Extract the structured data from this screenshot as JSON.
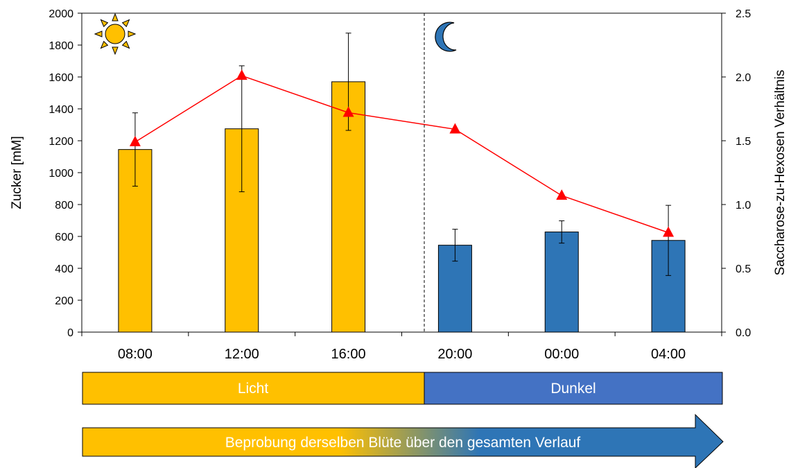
{
  "chart_data": {
    "type": "bar",
    "categories": [
      "08:00",
      "12:00",
      "16:00",
      "20:00",
      "00:00",
      "04:00"
    ],
    "series": [
      {
        "type": "bar",
        "axis": "left",
        "values": [
          1145,
          1275,
          1570,
          545,
          628,
          575
        ],
        "error": [
          230,
          395,
          305,
          100,
          70,
          220
        ],
        "colors": [
          "#FFC000",
          "#FFC000",
          "#FFC000",
          "#2E75B6",
          "#2E75B6",
          "#2E75B6"
        ]
      },
      {
        "type": "line",
        "axis": "right",
        "marker": "triangle",
        "color": "#FF0000",
        "values": [
          1.49,
          2.01,
          1.72,
          1.59,
          1.07,
          0.78
        ]
      }
    ],
    "ylabel": "Zucker [mM]",
    "ylim": [
      0,
      2000
    ],
    "yticks": [
      0,
      200,
      400,
      600,
      800,
      1000,
      1200,
      1400,
      1600,
      1800,
      2000
    ],
    "y2label": "Saccharose-zu-Hexosen Verhältnis",
    "y2lim": [
      0,
      2.5
    ],
    "y2ticks": [
      "0.0",
      "0.5",
      "1.0",
      "1.5",
      "2.0",
      "2.5"
    ],
    "divider_after_category": "16:00",
    "grid": false,
    "legend": "none"
  },
  "phases": [
    {
      "label": "Licht",
      "color": "#FFC000"
    },
    {
      "label": "Dunkel",
      "color": "#4472C4"
    }
  ],
  "arrow": {
    "label": "Beprobung derselben Blüte über den gesamten Verlauf",
    "color_start": "#FFC000",
    "color_end": "#2E75B6"
  },
  "icons": {
    "light": "sun-icon",
    "dark": "moon-icon"
  }
}
